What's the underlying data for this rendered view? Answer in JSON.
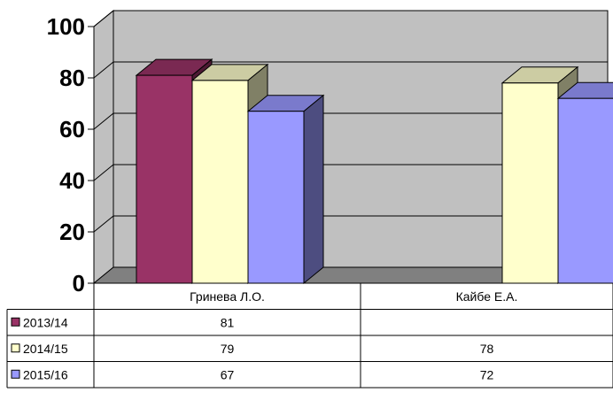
{
  "chart_data": {
    "type": "bar",
    "categories": [
      "Гринева Л.О.",
      "Кайбе Е.А."
    ],
    "series": [
      {
        "name": "2013/14",
        "values": [
          81,
          null
        ],
        "color": "#993366"
      },
      {
        "name": "2014/15",
        "values": [
          79,
          78
        ],
        "color": "#FFFFCC"
      },
      {
        "name": "2015/16",
        "values": [
          67,
          72
        ],
        "color": "#9999FF"
      }
    ],
    "data_table": {
      "rows": [
        {
          "label": "2013/14",
          "cells": [
            "81",
            ""
          ]
        },
        {
          "label": "2014/15",
          "cells": [
            "79",
            "78"
          ]
        },
        {
          "label": "2015/16",
          "cells": [
            "67",
            "72"
          ]
        }
      ]
    },
    "ylim": [
      0,
      100
    ],
    "yticks": [
      "0",
      "20",
      "40",
      "60",
      "80",
      "100"
    ],
    "title": "",
    "xlabel": "",
    "ylabel": "",
    "grid": true,
    "style": "3d-clustered-bar",
    "wall_color": "#C0C0C0",
    "floor_color": "#808080"
  }
}
